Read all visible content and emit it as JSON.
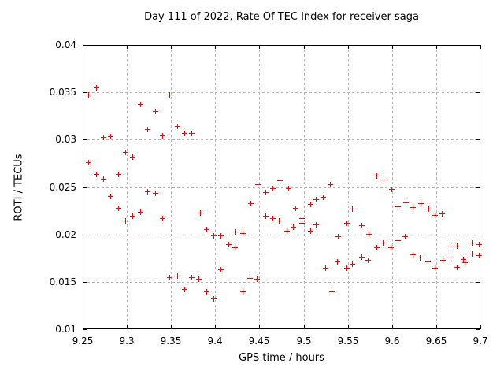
{
  "chart_data": {
    "type": "scatter",
    "title": "Day 111 of 2022, Rate Of TEC Index for receiver saga",
    "xlabel": "GPS time / hours",
    "ylabel": "ROTI / TECUs",
    "xlim": [
      9.25,
      9.7
    ],
    "ylim": [
      0.01,
      0.04
    ],
    "xticks": [
      9.25,
      9.3,
      9.35,
      9.4,
      9.45,
      9.5,
      9.55,
      9.6,
      9.65,
      9.7
    ],
    "yticks": [
      0.01,
      0.015,
      0.02,
      0.025,
      0.03,
      0.035,
      0.04
    ],
    "grid": true,
    "legend": "none",
    "marker": "plus",
    "marker_color": "#ff0000",
    "grid_color": "#b5b5b5",
    "points": [
      [
        9.257,
        0.0347
      ],
      [
        9.257,
        0.0275
      ],
      [
        9.266,
        0.0354
      ],
      [
        9.266,
        0.0263
      ],
      [
        9.274,
        0.0302
      ],
      [
        9.274,
        0.0258
      ],
      [
        9.282,
        0.0303
      ],
      [
        9.282,
        0.024
      ],
      [
        9.291,
        0.0263
      ],
      [
        9.291,
        0.0227
      ],
      [
        9.299,
        0.0286
      ],
      [
        9.299,
        0.0214
      ],
      [
        9.307,
        0.0281
      ],
      [
        9.307,
        0.0219
      ],
      [
        9.316,
        0.0337
      ],
      [
        9.316,
        0.0223
      ],
      [
        9.324,
        0.031
      ],
      [
        9.324,
        0.0245
      ],
      [
        9.333,
        0.0329
      ],
      [
        9.333,
        0.0243
      ],
      [
        9.341,
        0.0304
      ],
      [
        9.341,
        0.0216
      ],
      [
        9.349,
        0.0347
      ],
      [
        9.349,
        0.0154
      ],
      [
        9.358,
        0.0314
      ],
      [
        9.358,
        0.0156
      ],
      [
        9.366,
        0.0306
      ],
      [
        9.366,
        0.0142
      ],
      [
        9.374,
        0.0306
      ],
      [
        9.374,
        0.0154
      ],
      [
        9.382,
        0.0152
      ],
      [
        9.384,
        0.0222
      ],
      [
        9.391,
        0.0205
      ],
      [
        9.391,
        0.0139
      ],
      [
        9.399,
        0.0198
      ],
      [
        9.399,
        0.0132
      ],
      [
        9.407,
        0.0198
      ],
      [
        9.407,
        0.0162
      ],
      [
        9.416,
        0.0189
      ],
      [
        9.423,
        0.0186
      ],
      [
        9.424,
        0.0202
      ],
      [
        9.432,
        0.0201
      ],
      [
        9.432,
        0.0139
      ],
      [
        9.44,
        0.0153
      ],
      [
        9.441,
        0.0232
      ],
      [
        9.448,
        0.0152
      ],
      [
        9.449,
        0.0252
      ],
      [
        9.458,
        0.0244
      ],
      [
        9.458,
        0.0219
      ],
      [
        9.466,
        0.0248
      ],
      [
        9.466,
        0.0216
      ],
      [
        9.473,
        0.0214
      ],
      [
        9.474,
        0.0256
      ],
      [
        9.482,
        0.0203
      ],
      [
        9.483,
        0.0248
      ],
      [
        9.489,
        0.0207
      ],
      [
        9.491,
        0.0227
      ],
      [
        9.499,
        0.0216
      ],
      [
        9.499,
        0.0211
      ],
      [
        9.508,
        0.0231
      ],
      [
        9.508,
        0.0203
      ],
      [
        9.515,
        0.0236
      ],
      [
        9.515,
        0.021
      ],
      [
        9.523,
        0.0239
      ],
      [
        9.525,
        0.0164
      ],
      [
        9.531,
        0.0252
      ],
      [
        9.532,
        0.0139
      ],
      [
        9.539,
        0.0171
      ],
      [
        9.54,
        0.0197
      ],
      [
        9.549,
        0.0211
      ],
      [
        9.549,
        0.0164
      ],
      [
        9.556,
        0.0226
      ],
      [
        9.556,
        0.0168
      ],
      [
        9.566,
        0.0209
      ],
      [
        9.566,
        0.0176
      ],
      [
        9.573,
        0.0172
      ],
      [
        9.574,
        0.02
      ],
      [
        9.583,
        0.0261
      ],
      [
        9.583,
        0.0186
      ],
      [
        9.59,
        0.0191
      ],
      [
        9.591,
        0.0257
      ],
      [
        9.599,
        0.0186
      ],
      [
        9.6,
        0.0247
      ],
      [
        9.607,
        0.0229
      ],
      [
        9.607,
        0.0193
      ],
      [
        9.615,
        0.0197
      ],
      [
        9.616,
        0.0233
      ],
      [
        9.624,
        0.0228
      ],
      [
        9.624,
        0.0178
      ],
      [
        9.632,
        0.0175
      ],
      [
        9.633,
        0.0232
      ],
      [
        9.641,
        0.0171
      ],
      [
        9.642,
        0.0226
      ],
      [
        9.649,
        0.022
      ],
      [
        9.649,
        0.0164
      ],
      [
        9.657,
        0.0221
      ],
      [
        9.658,
        0.0172
      ],
      [
        9.666,
        0.0187
      ],
      [
        9.666,
        0.0175
      ],
      [
        9.674,
        0.0187
      ],
      [
        9.674,
        0.0165
      ],
      [
        9.681,
        0.0173
      ],
      [
        9.683,
        0.017
      ],
      [
        9.691,
        0.0191
      ],
      [
        9.691,
        0.0179
      ],
      [
        9.699,
        0.0189
      ],
      [
        9.699,
        0.0177
      ]
    ]
  }
}
